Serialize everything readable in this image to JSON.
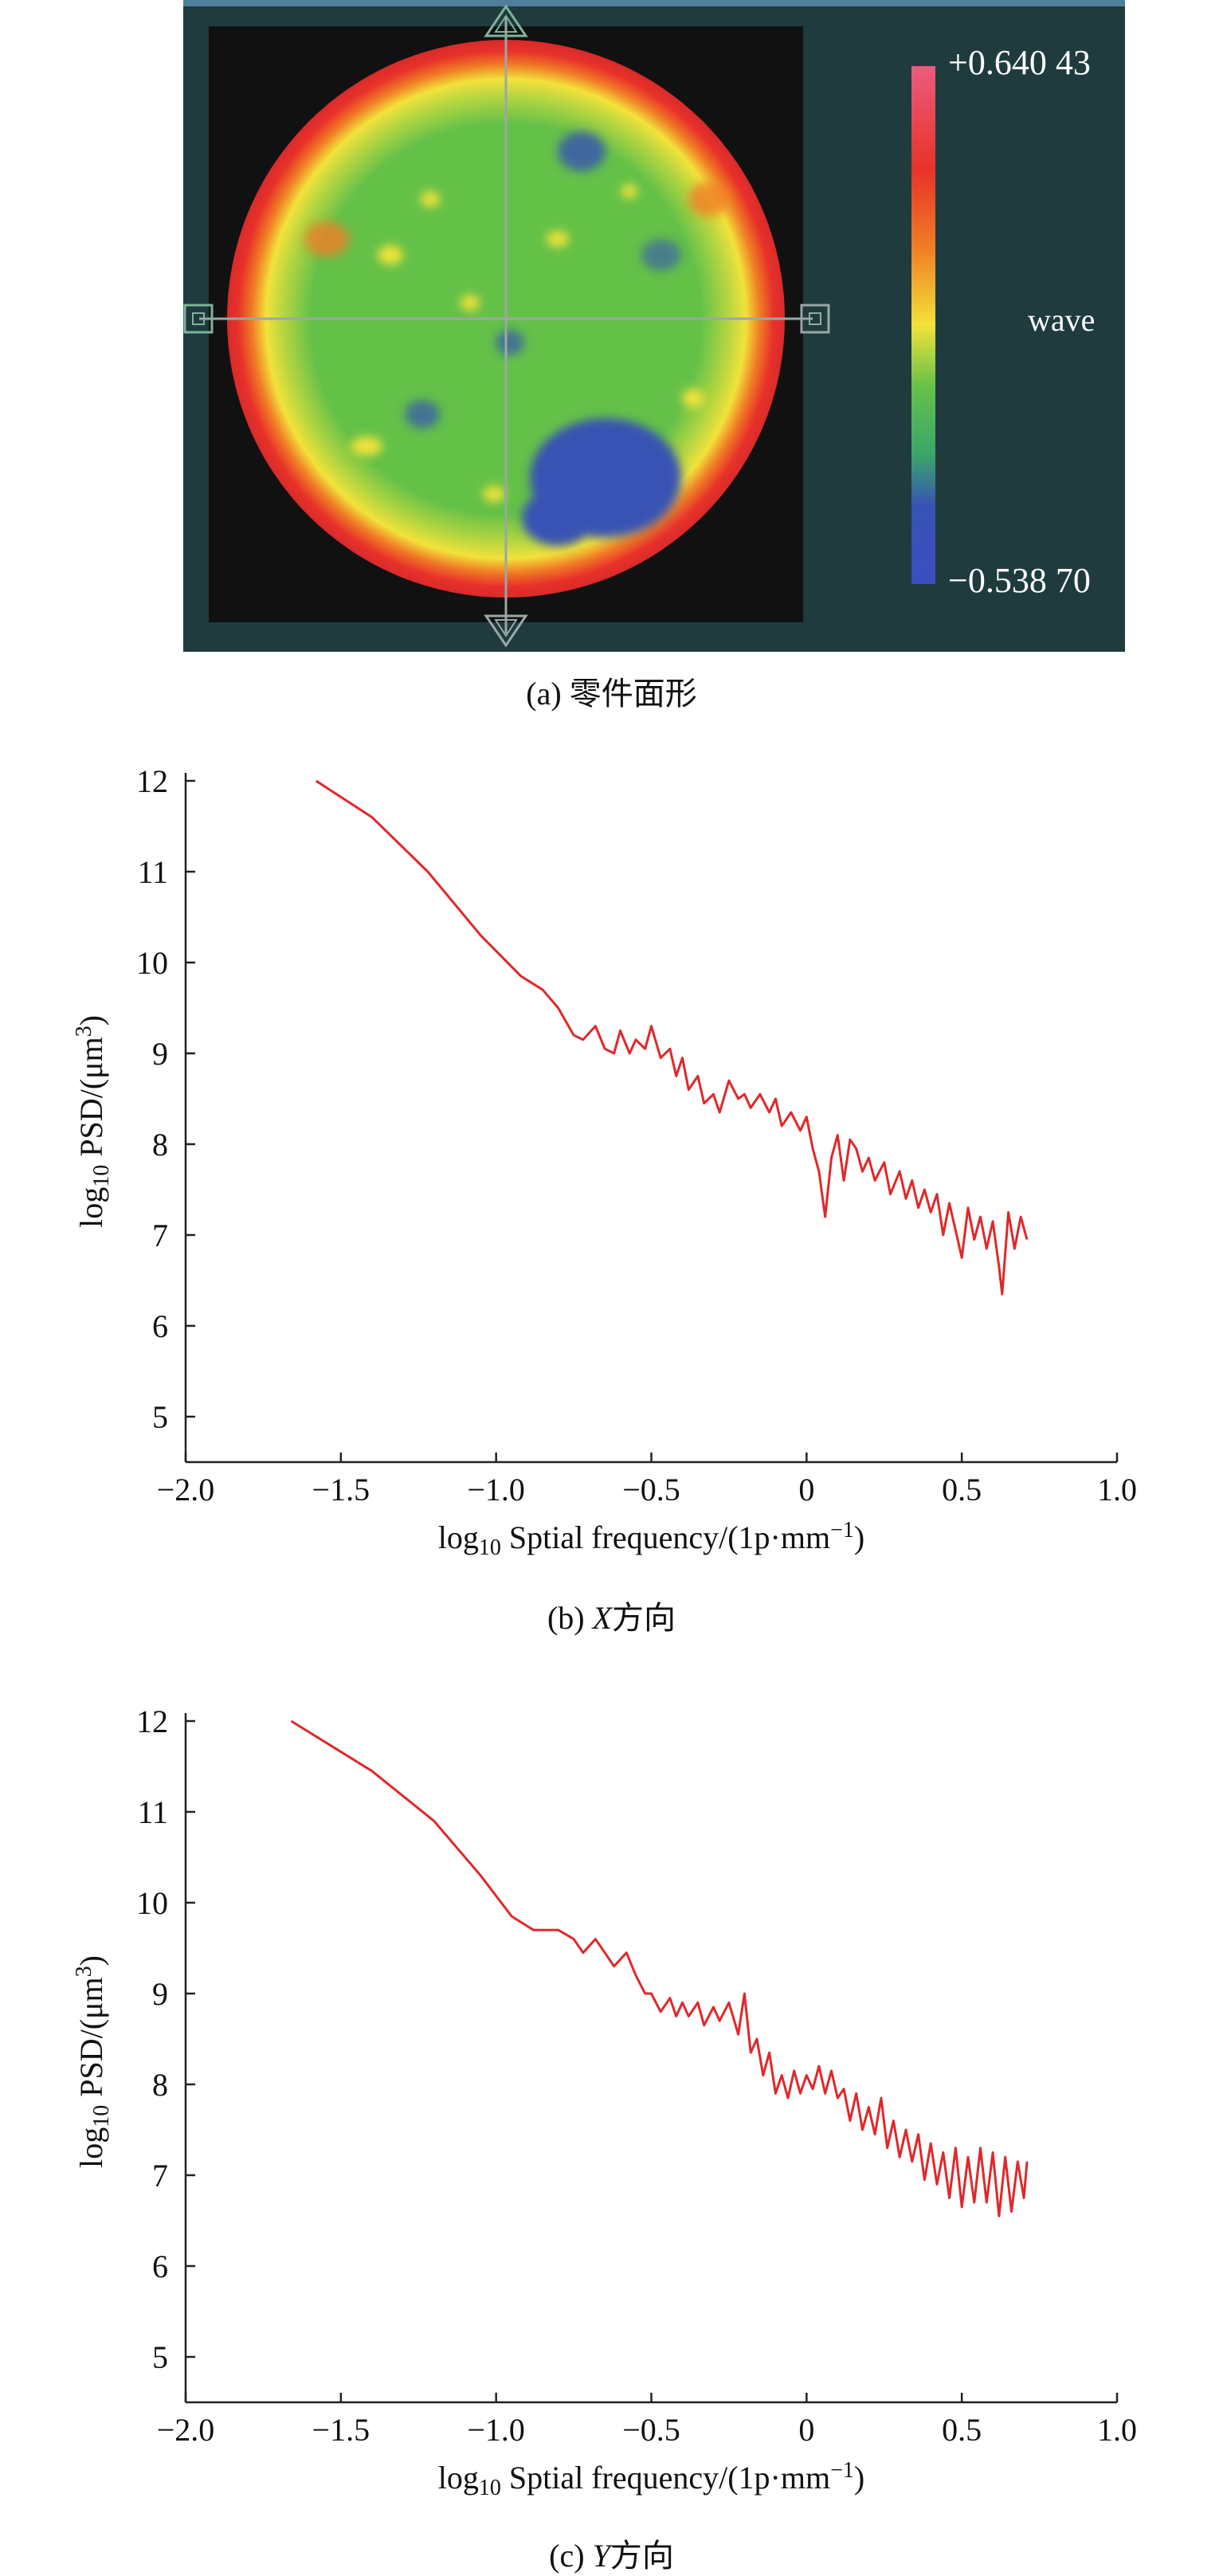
{
  "surface_map": {
    "legend_max": "+0.640 43",
    "legend_min": "−0.538 70",
    "legend_unit": "wave",
    "colors": {
      "background": "#1f3b3e",
      "mask": "#111111",
      "red": "#e8322a",
      "orange": "#f07d25",
      "yellow": "#f2e23a",
      "green": "#64c148",
      "blue": "#3852b4",
      "pink": "#ea5c7c"
    },
    "caption": "(a) 零件面形"
  },
  "chart_data": [
    {
      "type": "line",
      "caption_prefix": "(b) ",
      "caption_var": "X",
      "caption_suffix": "方向",
      "xlabel_pre": "log",
      "xlabel_sub": "10",
      "xlabel_main": " Sptial frequency/(1p·mm",
      "xlabel_sup": "−1",
      "xlabel_end": ")",
      "ylabel_pre": "log",
      "ylabel_sub": "10",
      "ylabel_main": " PSD/(μm",
      "ylabel_sup": "3",
      "ylabel_end": ")",
      "xlim": [
        -2.0,
        1.0
      ],
      "ylim": [
        4.5,
        12
      ],
      "xticks": [
        "−2.0",
        "−1.5",
        "−1.0",
        "−0.5",
        "0",
        "0.5",
        "1.0"
      ],
      "xtick_values": [
        -2.0,
        -1.5,
        -1.0,
        -0.5,
        0,
        0.5,
        1.0
      ],
      "yticks": [
        "5",
        "6",
        "7",
        "8",
        "9",
        "10",
        "11",
        "12"
      ],
      "ytick_values": [
        5,
        6,
        7,
        8,
        9,
        10,
        11,
        12
      ],
      "line_color": "#e0282a",
      "series": [
        {
          "x": [
            -1.58,
            -1.4,
            -1.22,
            -1.05,
            -0.92,
            -0.85,
            -0.8,
            -0.75,
            -0.72,
            -0.68,
            -0.65,
            -0.62,
            -0.6,
            -0.57,
            -0.55,
            -0.52,
            -0.5,
            -0.47,
            -0.44,
            -0.42,
            -0.4,
            -0.38,
            -0.35,
            -0.33,
            -0.3,
            -0.28,
            -0.25,
            -0.22,
            -0.2,
            -0.18,
            -0.15,
            -0.12,
            -0.1,
            -0.08,
            -0.05,
            -0.02,
            0,
            0.02,
            0.04,
            0.06,
            0.08,
            0.1,
            0.12,
            0.14,
            0.16,
            0.18,
            0.2,
            0.22,
            0.25,
            0.27,
            0.3,
            0.32,
            0.34,
            0.36,
            0.38,
            0.4,
            0.42,
            0.44,
            0.46,
            0.48,
            0.5,
            0.52,
            0.54,
            0.56,
            0.58,
            0.6,
            0.62,
            0.63,
            0.65,
            0.67,
            0.69,
            0.71
          ],
          "y": [
            12.0,
            11.6,
            11.0,
            10.3,
            9.85,
            9.7,
            9.5,
            9.2,
            9.15,
            9.3,
            9.05,
            9.0,
            9.25,
            9.0,
            9.15,
            9.05,
            9.3,
            8.95,
            9.05,
            8.75,
            8.95,
            8.6,
            8.75,
            8.45,
            8.55,
            8.35,
            8.7,
            8.5,
            8.55,
            8.4,
            8.55,
            8.35,
            8.5,
            8.2,
            8.35,
            8.15,
            8.3,
            7.95,
            7.7,
            7.2,
            7.85,
            8.1,
            7.6,
            8.05,
            7.95,
            7.7,
            7.85,
            7.6,
            7.8,
            7.45,
            7.7,
            7.4,
            7.6,
            7.3,
            7.5,
            7.25,
            7.45,
            7.0,
            7.35,
            7.05,
            6.75,
            7.3,
            6.95,
            7.2,
            6.85,
            7.15,
            6.65,
            6.35,
            7.25,
            6.85,
            7.2,
            6.95
          ]
        }
      ]
    },
    {
      "type": "line",
      "caption_prefix": "(c) ",
      "caption_var": "Y",
      "caption_suffix": "方向",
      "xlabel_pre": "log",
      "xlabel_sub": "10",
      "xlabel_main": " Sptial frequency/(1p·mm",
      "xlabel_sup": "−1",
      "xlabel_end": ")",
      "ylabel_pre": "log",
      "ylabel_sub": "10",
      "ylabel_main": " PSD/(μm",
      "ylabel_sup": "3",
      "ylabel_end": ")",
      "xlim": [
        -2.0,
        1.0
      ],
      "ylim": [
        4.5,
        12
      ],
      "xticks": [
        "−2.0",
        "−1.5",
        "−1.0",
        "−0.5",
        "0",
        "0.5",
        "1.0"
      ],
      "xtick_values": [
        -2.0,
        -1.5,
        -1.0,
        -0.5,
        0,
        0.5,
        1.0
      ],
      "yticks": [
        "5",
        "6",
        "7",
        "8",
        "9",
        "10",
        "11",
        "12"
      ],
      "ytick_values": [
        5,
        6,
        7,
        8,
        9,
        10,
        11,
        12
      ],
      "line_color": "#e0282a",
      "series": [
        {
          "x": [
            -1.66,
            -1.4,
            -1.2,
            -1.05,
            -0.95,
            -0.88,
            -0.8,
            -0.75,
            -0.72,
            -0.68,
            -0.65,
            -0.62,
            -0.58,
            -0.55,
            -0.52,
            -0.5,
            -0.47,
            -0.44,
            -0.42,
            -0.4,
            -0.38,
            -0.35,
            -0.33,
            -0.3,
            -0.28,
            -0.25,
            -0.22,
            -0.2,
            -0.18,
            -0.16,
            -0.14,
            -0.12,
            -0.1,
            -0.08,
            -0.06,
            -0.04,
            -0.02,
            0,
            0.02,
            0.04,
            0.06,
            0.08,
            0.1,
            0.12,
            0.14,
            0.16,
            0.18,
            0.2,
            0.22,
            0.24,
            0.26,
            0.28,
            0.3,
            0.32,
            0.34,
            0.36,
            0.38,
            0.4,
            0.42,
            0.44,
            0.46,
            0.48,
            0.5,
            0.52,
            0.54,
            0.56,
            0.58,
            0.6,
            0.62,
            0.64,
            0.66,
            0.68,
            0.7,
            0.71
          ],
          "y": [
            12.0,
            11.45,
            10.9,
            10.3,
            9.85,
            9.7,
            9.7,
            9.6,
            9.45,
            9.6,
            9.45,
            9.3,
            9.45,
            9.2,
            9.0,
            9.0,
            8.8,
            8.95,
            8.75,
            8.9,
            8.75,
            8.9,
            8.65,
            8.85,
            8.7,
            8.9,
            8.55,
            9.0,
            8.35,
            8.5,
            8.1,
            8.35,
            7.9,
            8.1,
            7.85,
            8.15,
            7.9,
            8.1,
            7.95,
            8.2,
            7.9,
            8.15,
            7.85,
            7.95,
            7.6,
            7.9,
            7.5,
            7.75,
            7.45,
            7.85,
            7.3,
            7.6,
            7.2,
            7.5,
            7.15,
            7.45,
            6.95,
            7.35,
            6.9,
            7.25,
            6.75,
            7.3,
            6.65,
            7.2,
            6.7,
            7.3,
            6.7,
            7.25,
            6.55,
            7.2,
            6.6,
            7.15,
            6.75,
            7.15
          ]
        }
      ]
    }
  ]
}
